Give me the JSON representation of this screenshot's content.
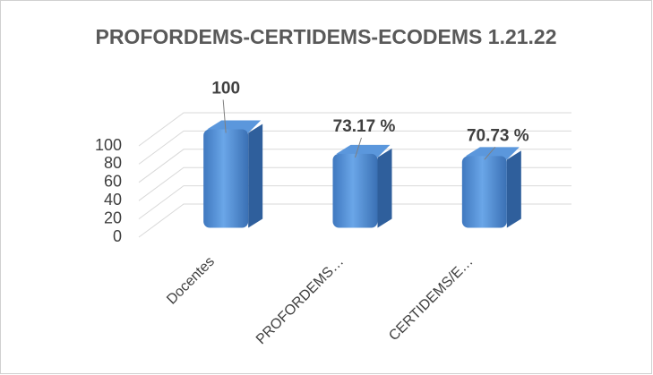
{
  "chart_data": {
    "type": "bar3d",
    "title": "PROFORDEMS-CERTIDEMS-ECODEMS 1.21.22",
    "categories": [
      "Docentes",
      "PROFORDEMS…",
      "CERTIDEMS/E…"
    ],
    "values": [
      100,
      73.17,
      70.73
    ],
    "value_labels": [
      "100",
      "73.17 %",
      "70.73 %"
    ],
    "color": "#4a86d0",
    "ylim": [
      0,
      100
    ],
    "yticks": [
      0,
      20,
      40,
      60,
      80,
      100
    ],
    "grid": true
  }
}
